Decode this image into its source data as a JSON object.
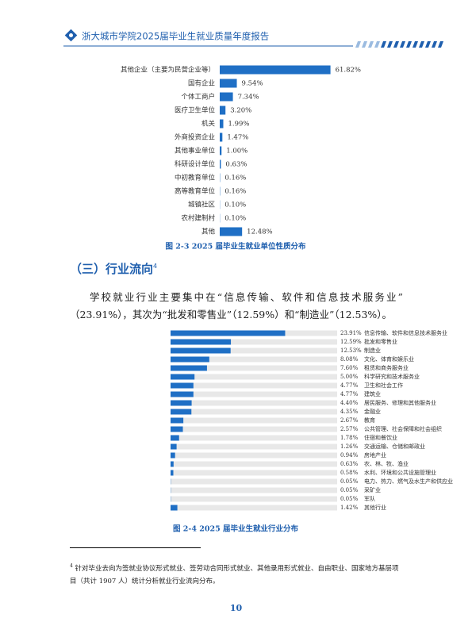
{
  "header": {
    "title": "浙大城市学院2025届毕业生就业质量年度报告"
  },
  "chart_data": [
    {
      "type": "hbar",
      "title": "图 2-3  2025 届毕业生就业单位性质分布",
      "color": "#1f6fc5",
      "categories": [
        "其他企业（主要为民营企业等）",
        "国有企业",
        "个体工商户",
        "医疗卫生单位",
        "机关",
        "外商投资企业",
        "其他事业单位",
        "科研设计单位",
        "中初教育单位",
        "高等教育单位",
        "城镇社区",
        "农村建制村",
        "其他"
      ],
      "values": [
        61.82,
        9.54,
        7.34,
        3.2,
        1.99,
        1.47,
        1.0,
        0.63,
        0.16,
        0.16,
        0.1,
        0.1,
        12.48
      ],
      "value_labels": [
        "61.82%",
        "9.54%",
        "7.34%",
        "3.20%",
        "1.99%",
        "1.47%",
        "1.00%",
        "0.63%",
        "0.16%",
        "0.16%",
        "0.10%",
        "0.10%",
        "12.48%"
      ]
    },
    {
      "type": "hbar-track",
      "title": "图 2-4  2025 届毕业生就业行业分布",
      "color": "#1f6fc5",
      "categories": [
        "信息传输、软件和信息技术服务业",
        "批发和零售业",
        "制造业",
        "文化、体育和娱乐业",
        "租赁和商务服务业",
        "科学研究和技术服务业",
        "卫生和社会工作",
        "建筑业",
        "居民服务、修理和其他服务业",
        "金融业",
        "教育",
        "公共管理、社会保障和社会组织",
        "住宿和餐饮业",
        "交通运输、仓储和邮政业",
        "房地产业",
        "农、林、牧、渔业",
        "水利、环境和公共设施管理业",
        "电力、热力、燃气及水生产和供应业",
        "采矿业",
        "军队",
        "其他行业"
      ],
      "values": [
        23.91,
        12.59,
        12.53,
        8.08,
        7.6,
        5.0,
        4.77,
        4.77,
        4.4,
        4.35,
        2.67,
        2.57,
        1.78,
        1.26,
        0.94,
        0.63,
        0.58,
        0.05,
        0.05,
        0.05,
        1.42
      ],
      "value_labels": [
        "23.91%",
        "12.59%",
        "12.53%",
        "8.08%",
        "7.60%",
        "5.00%",
        "4.77%",
        "4.77%",
        "4.40%",
        "4.35%",
        "2.67%",
        "2.57%",
        "1.78%",
        "1.26%",
        "0.94%",
        "0.63%",
        "0.58%",
        "0.05%",
        "0.05%",
        "0.05%",
        "1.42%"
      ]
    }
  ],
  "section": {
    "heading": "（三）行业流向",
    "note_mark": "4",
    "paragraph": "学校就业行业主要集中在“信息传输、软件和信息技术服务业”（23.91%），其次为“批发和零售业”（12.59%）和“制造业”（12.53%）。"
  },
  "footnote": {
    "mark": "4",
    "text": "针对毕业去向为签就业协议形式就业、签劳动合同形式就业、其他录用形式就业、自由职业、国家地方基层项目（共计 1907 人）统计分析就业行业流向分布。"
  },
  "page_number": "10"
}
